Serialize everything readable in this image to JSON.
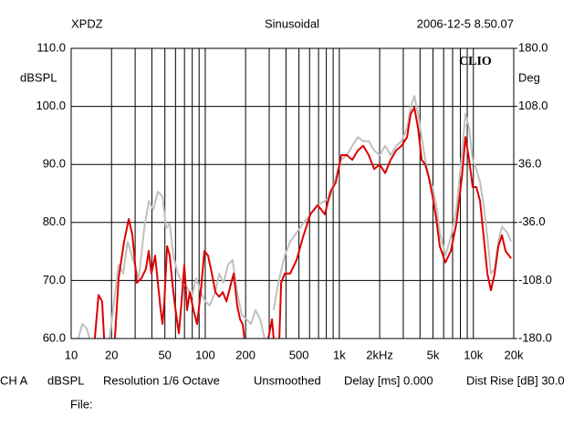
{
  "chart_data": {
    "type": "line",
    "header": [
      "XPDZ",
      "Sinusoidal",
      "2006-12-5 8.50.07"
    ],
    "ylabel": "dBSPL",
    "y2label": "Deg",
    "annotation": "CLIO",
    "footer": [
      "CH A",
      "dBSPL",
      "Resolution 1/6 Octave",
      "Unsmoothed",
      "Delay [ms] 0.000",
      "Dist Rise [dB] 30.0"
    ],
    "file_label": "File:",
    "log_x": true,
    "grid": true,
    "xlim": [
      10,
      20000
    ],
    "xticks": [
      10,
      20,
      50,
      100,
      200,
      500,
      {
        "value": 1000,
        "label": "1k"
      },
      {
        "value": 2000,
        "label": "2kHz"
      },
      {
        "value": 5000,
        "label": "5k"
      },
      {
        "value": 10000,
        "label": "10k"
      },
      {
        "value": 20000,
        "label": "20k"
      }
    ],
    "xminor": [
      30,
      40,
      60,
      70,
      80,
      90,
      300,
      400,
      600,
      700,
      800,
      900,
      3000,
      4000,
      6000,
      7000,
      8000,
      9000
    ],
    "ylim": [
      60,
      110
    ],
    "yticks": [
      {
        "value": 60,
        "label": "60.0"
      },
      {
        "value": 70,
        "label": "70.0"
      },
      {
        "value": 80,
        "label": "80.0"
      },
      {
        "value": 90,
        "label": "90.0"
      },
      {
        "value": 100,
        "label": "100.0"
      },
      {
        "value": 110,
        "label": "110.0"
      }
    ],
    "y2lim": [
      -180,
      180
    ],
    "y2ticks": [
      {
        "value": -180,
        "label": "-180.0"
      },
      {
        "value": -108,
        "label": "-108.0"
      },
      {
        "value": -36,
        "label": "-36.0"
      },
      {
        "value": 36,
        "label": "36.0"
      },
      {
        "value": 108,
        "label": "108.0"
      },
      {
        "value": 180,
        "label": "180.0"
      }
    ],
    "series": [
      {
        "color": "#c0c0c0",
        "x": [
          11.3,
          12.1,
          13.1,
          13.7,
          16,
          19.3,
          20.9,
          22.6,
          24.4,
          26.4,
          29.0,
          31.9,
          35.1,
          37.9,
          41.0,
          44.3,
          48.0,
          51.0,
          54.3,
          57.8,
          62.5,
          67.6,
          73.2,
          79.2,
          85.7,
          92.6,
          100,
          108,
          119,
          127,
          137,
          148,
          160,
          173,
          187,
          203,
          219,
          237,
          257,
          277,
          300,
          324,
          351,
          392,
          430,
          480,
          536,
          608,
          689,
          780,
          858,
          942,
          1035,
          1138,
          1250,
          1373,
          1508,
          1657,
          1820,
          2000,
          2198,
          2415,
          2652,
          2913,
          3200,
          3406,
          3631,
          3864,
          4111,
          4375,
          4656,
          4966,
          5284,
          5623,
          6180,
          6792,
          7464,
          8204,
          8730,
          9290,
          9886,
          10520,
          11220,
          11940,
          12710,
          13520,
          14420,
          15350,
          16330,
          17950,
          19100
        ],
        "values": [
          60,
          62.5,
          61.7,
          60,
          null,
          60,
          66.4,
          72.7,
          71.2,
          76.7,
          73.5,
          70.4,
          79.0,
          83.7,
          82.2,
          85.3,
          84.5,
          79.0,
          79.8,
          74.3,
          71.2,
          69.6,
          68.8,
          67.2,
          70.4,
          68.0,
          66.4,
          65.7,
          68.0,
          71.2,
          69.6,
          72.7,
          73.5,
          68.0,
          64.1,
          63.3,
          62.5,
          64.9,
          63.3,
          60,
          null,
          64.9,
          69.6,
          74.3,
          76.7,
          78.2,
          79.8,
          81.4,
          83.0,
          83.7,
          84.5,
          87.7,
          90.8,
          91.6,
          93.2,
          94.7,
          94.0,
          94.0,
          92.4,
          91.6,
          93.2,
          91.6,
          93.2,
          94.0,
          96.3,
          99.8,
          101.8,
          98.7,
          94.7,
          90.8,
          87.7,
          86.1,
          83.0,
          78.2,
          74.3,
          77.5,
          82.2,
          91.6,
          98.7,
          96.3,
          90.8,
          89.2,
          86.9,
          83.0,
          77.5,
          71.2,
          72.0,
          76.7,
          79.3,
          78.2,
          76.7
        ]
      },
      {
        "color": "#dd0000",
        "x": [
          15.0,
          16.0,
          17.0,
          17.6,
          19,
          21.2,
          22.6,
          24.8,
          26.9,
          28.6,
          30.9,
          33.4,
          36.1,
          37.9,
          39.7,
          42.3,
          44.3,
          46.5,
          48.0,
          49.5,
          51.9,
          54.3,
          57.8,
          60.7,
          63.6,
          66.6,
          69.8,
          73.2,
          76.7,
          81.7,
          86.9,
          92.6,
          98.6,
          105,
          112,
          119,
          127,
          135,
          144,
          153,
          163,
          173,
          182,
          190,
          196,
          250,
          295,
          315,
          324,
          340,
          357,
          368,
          392,
          430,
          480,
          536,
          608,
          689,
          780,
          858,
          942,
          1035,
          1138,
          1250,
          1373,
          1508,
          1657,
          1820,
          2000,
          2198,
          2415,
          2652,
          2913,
          3200,
          3406,
          3631,
          3864,
          4111,
          4375,
          4656,
          4966,
          5284,
          5623,
          6180,
          6792,
          7464,
          8204,
          8730,
          9290,
          9886,
          10520,
          11220,
          11940,
          12710,
          13520,
          14420,
          15350,
          16330,
          17380,
          19100
        ],
        "values": [
          60,
          67.5,
          66.4,
          60,
          null,
          60,
          70.4,
          76.7,
          80.6,
          77.8,
          69.6,
          70.4,
          72.0,
          75.1,
          71.2,
          74.3,
          69.6,
          64.9,
          62.5,
          66.4,
          75.9,
          74.3,
          68.0,
          64.1,
          60.9,
          66.4,
          72.7,
          64.9,
          68.0,
          64.9,
          62.5,
          68.0,
          75.1,
          74.3,
          71.2,
          68.0,
          67.2,
          68.0,
          66.4,
          68.8,
          71.2,
          65.7,
          63.3,
          62.5,
          60,
          null,
          60,
          63.3,
          60,
          null,
          60,
          69.6,
          71.2,
          71.2,
          73.5,
          77.5,
          81.4,
          83.0,
          81.4,
          85.3,
          86.9,
          91.6,
          91.6,
          90.8,
          92.4,
          93.2,
          91.6,
          89.2,
          90.0,
          88.5,
          90.8,
          92.4,
          93.2,
          94.7,
          98.7,
          99.8,
          96.3,
          90.8,
          90.0,
          87.7,
          84.5,
          80.6,
          75.9,
          73.1,
          75.1,
          79.8,
          87.7,
          94.7,
          90.8,
          86.1,
          86.1,
          83.7,
          77.5,
          71.2,
          68.3,
          71.2,
          75.9,
          77.8,
          75.1,
          73.8
        ]
      }
    ]
  }
}
